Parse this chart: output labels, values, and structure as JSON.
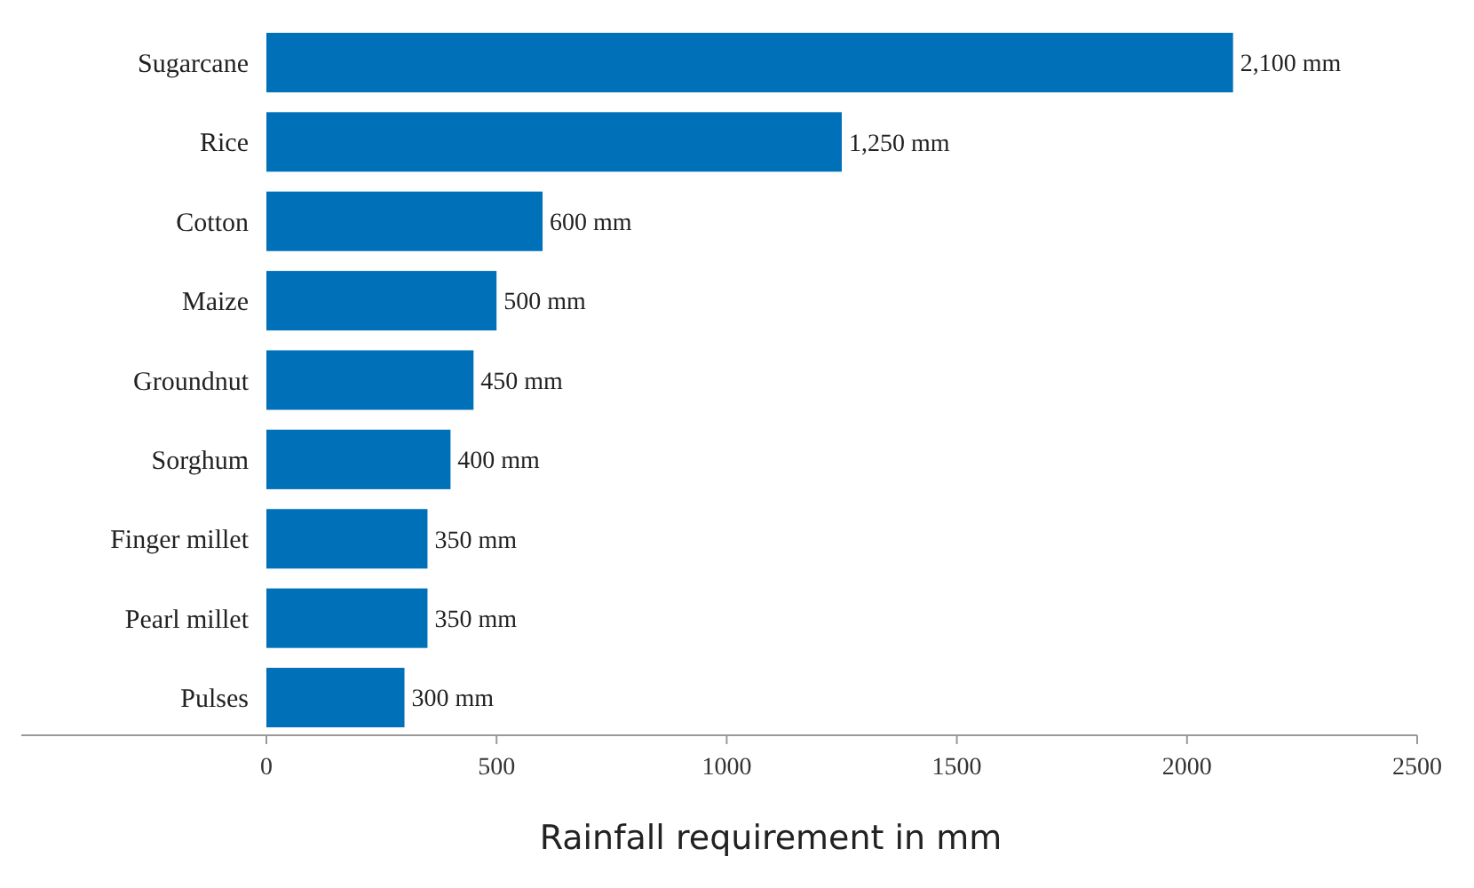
{
  "chart_data": {
    "type": "bar",
    "orientation": "horizontal",
    "xlabel": "Rainfall requirement in mm",
    "categories": [
      "Sugarcane",
      "Rice",
      "Cotton",
      "Maize",
      "Groundnut",
      "Sorghum",
      "Finger millet",
      "Pearl millet",
      "Pulses"
    ],
    "values": [
      2100,
      1250,
      600,
      500,
      450,
      400,
      350,
      350,
      300
    ],
    "value_labels": [
      "2,100 mm",
      "1,250 mm",
      "600 mm",
      "500 mm",
      "450 mm",
      "400 mm",
      "350 mm",
      "350 mm",
      "300 mm"
    ],
    "color": "#0071b9",
    "xlim": [
      0,
      2500
    ],
    "xticks": [
      0,
      500,
      1000,
      1500,
      2000,
      2500
    ],
    "grid": false
  }
}
